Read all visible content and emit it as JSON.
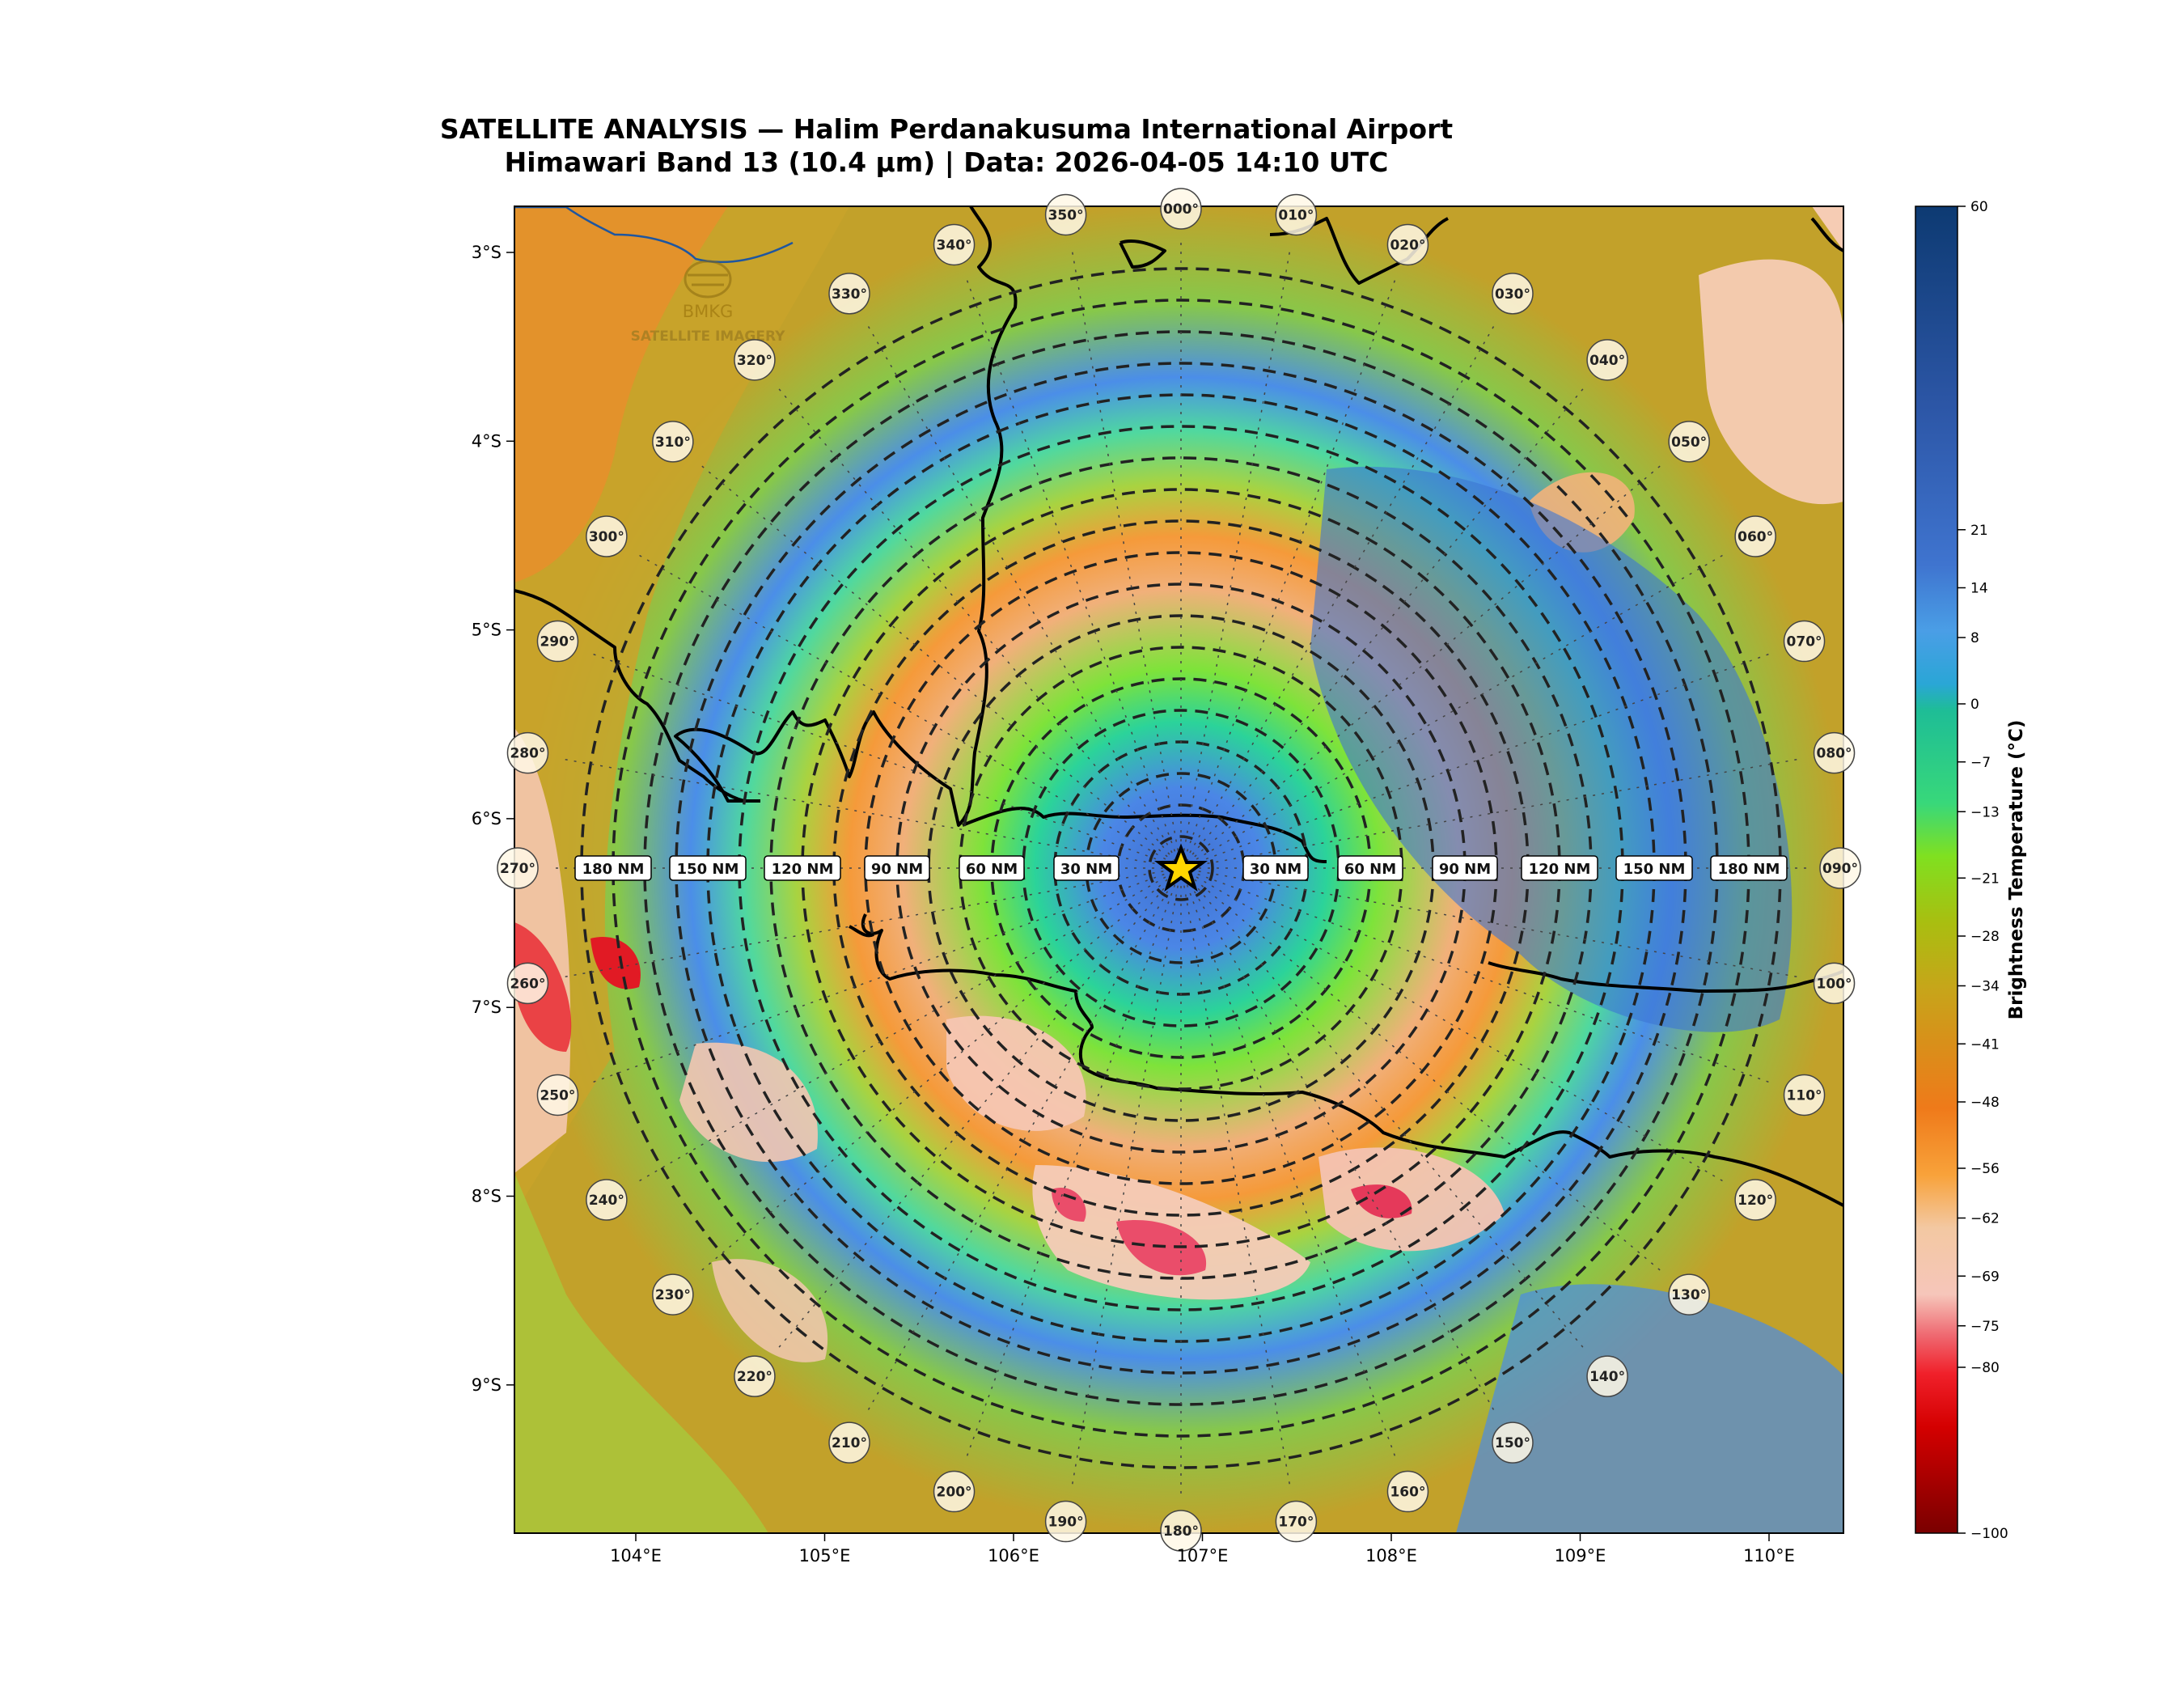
{
  "header": {
    "title_line1": "SATELLITE ANALYSIS — Halim Perdanakusuma International Airport",
    "title_line2": "Himawari Band 13 (10.4 μm) | Data: 2026-04-05 14:10 UTC"
  },
  "watermark": {
    "org": "BMKG",
    "subtitle": "SATELLITE IMAGERY"
  },
  "map": {
    "lon_ticks": [
      "104°E",
      "105°E",
      "106°E",
      "107°E",
      "108°E",
      "109°E",
      "110°E"
    ],
    "lat_ticks": [
      "3°S",
      "4°S",
      "5°S",
      "6°S",
      "7°S",
      "8°S",
      "9°S"
    ],
    "center_marker": "star",
    "range_rings_nm_step": 10,
    "range_labels": [
      "30 NM",
      "60 NM",
      "90 NM",
      "120 NM",
      "150 NM",
      "180 NM"
    ],
    "bearing_labels": [
      "000°",
      "010°",
      "020°",
      "030°",
      "040°",
      "050°",
      "060°",
      "070°",
      "080°",
      "090°",
      "100°",
      "110°",
      "120°",
      "130°",
      "140°",
      "150°",
      "160°",
      "170°",
      "180°",
      "190°",
      "200°",
      "210°",
      "220°",
      "230°",
      "240°",
      "250°",
      "260°",
      "270°",
      "280°",
      "290°",
      "300°",
      "310°",
      "320°",
      "330°",
      "340°",
      "350°"
    ]
  },
  "colorbar": {
    "label": "Brightness Temperature (°C)",
    "ticks": [
      "60",
      "21",
      "14",
      "8",
      "0",
      "−7",
      "−13",
      "−21",
      "−28",
      "−34",
      "−41",
      "−48",
      "−56",
      "−62",
      "−69",
      "−75",
      "−80",
      "−100"
    ],
    "min": -100,
    "max": 60
  }
}
